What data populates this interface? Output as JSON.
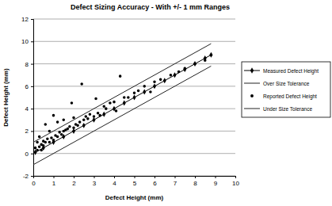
{
  "chart_data": {
    "type": "scatter",
    "title": "Defect Sizing Accuracy - With +/- 1 mm Ranges",
    "x_label": "Defect Height (mm)",
    "y_label": "Defect Height (mm)",
    "xlim": [
      0,
      10
    ],
    "xticks": [
      0,
      1,
      2,
      3,
      4,
      5,
      6,
      7,
      8,
      9,
      10
    ],
    "ylim": [
      -2,
      12
    ],
    "yticks": [
      -2,
      0,
      2,
      4,
      6,
      8,
      10,
      12
    ],
    "grid": true,
    "legend": "right",
    "series": [
      {
        "name": "Measured Defect Height",
        "type": "line",
        "marker": "diamond",
        "line_style": "solid",
        "color": "#000000",
        "x": [
          0.1,
          0.5,
          1.0,
          1.5,
          2.0,
          2.5,
          3.0,
          3.5,
          4.0,
          4.5,
          5.0,
          5.5,
          6.0,
          6.5,
          7.0,
          7.5,
          8.0,
          8.5,
          8.8
        ],
        "values": [
          0.1,
          0.5,
          1.0,
          1.5,
          2.0,
          2.5,
          3.0,
          3.5,
          4.0,
          4.5,
          5.0,
          5.5,
          6.0,
          6.5,
          7.0,
          7.5,
          8.0,
          8.5,
          8.8
        ]
      },
      {
        "name": "Over Size Tolerance",
        "type": "line",
        "marker": "none",
        "line_style": "solid",
        "color": "#222222",
        "x": [
          0,
          8.8
        ],
        "values": [
          1,
          9.8
        ]
      },
      {
        "name": "Reported Defect Height",
        "type": "scatter",
        "marker": "circle",
        "color": "#000000",
        "x": [
          0.1,
          0.2,
          0.2,
          0.3,
          0.3,
          0.4,
          0.4,
          0.5,
          0.5,
          0.6,
          0.6,
          0.7,
          0.8,
          0.8,
          0.9,
          1.0,
          1.0,
          1.1,
          1.2,
          1.2,
          1.3,
          1.4,
          1.5,
          1.5,
          1.6,
          1.7,
          1.8,
          1.9,
          2.0,
          2.0,
          2.1,
          2.2,
          2.3,
          2.4,
          2.5,
          2.6,
          2.7,
          2.8,
          3.0,
          3.1,
          3.2,
          3.3,
          3.5,
          3.6,
          3.8,
          4.0,
          4.1,
          4.3,
          4.5,
          4.7,
          5.0,
          5.2,
          5.5,
          5.8,
          6.0,
          6.3,
          6.8,
          7.2,
          7.5,
          8.0,
          8.5,
          8.8
        ],
        "values": [
          0.5,
          0.3,
          1.0,
          0.6,
          1.5,
          0.8,
          0.3,
          1.1,
          0.7,
          2.6,
          1.0,
          1.3,
          1.0,
          2.0,
          1.4,
          1.2,
          3.4,
          1.6,
          1.5,
          2.8,
          1.9,
          1.7,
          2.0,
          3.0,
          2.1,
          2.2,
          2.4,
          4.5,
          2.3,
          3.2,
          2.6,
          2.5,
          2.8,
          6.2,
          3.0,
          3.3,
          3.1,
          3.5,
          3.3,
          4.9,
          3.6,
          3.4,
          4.2,
          4.0,
          4.5,
          4.6,
          3.8,
          6.9,
          5.0,
          5.0,
          5.4,
          5.6,
          6.0,
          5.5,
          6.4,
          6.6,
          7.0,
          7.3,
          7.6,
          8.0,
          8.3,
          8.8
        ]
      },
      {
        "name": "Under Size Tolerance",
        "type": "line",
        "marker": "none",
        "line_style": "solid",
        "color": "#222222",
        "x": [
          0,
          8.8
        ],
        "values": [
          -1,
          7.8
        ]
      }
    ]
  }
}
